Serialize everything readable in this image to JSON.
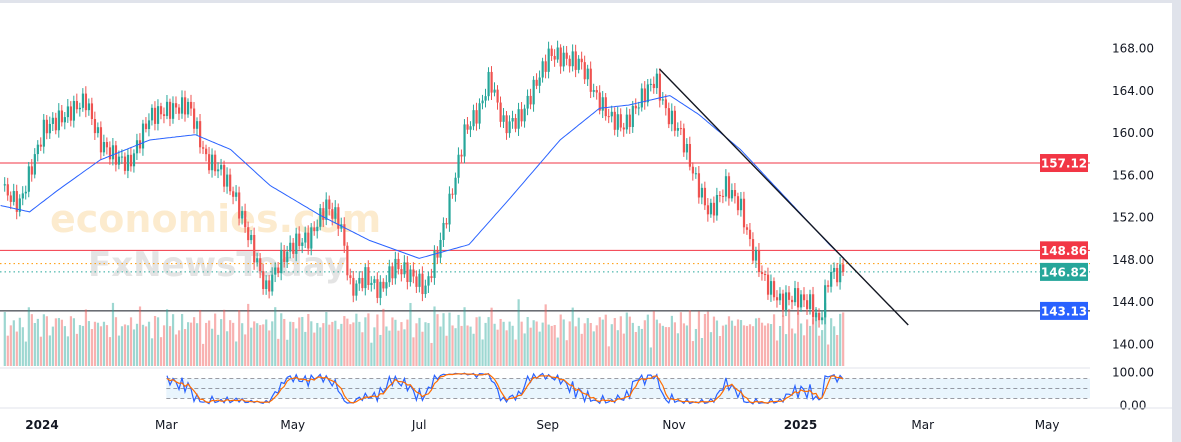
{
  "chart_data": {
    "type": "candlestick",
    "title": "",
    "price_axis": {
      "ylim": [
        140,
        168
      ],
      "ticks": [
        "168.00",
        "164.00",
        "160.00",
        "156.00",
        "152.00",
        "148.00",
        "144.00",
        "140.00"
      ]
    },
    "time_axis": {
      "labels": [
        {
          "text": "2024",
          "day": 0,
          "bold": true
        },
        {
          "text": "Mar",
          "day": 60
        },
        {
          "text": "May",
          "day": 121
        },
        {
          "text": "Jul",
          "day": 182
        },
        {
          "text": "Sep",
          "day": 244
        },
        {
          "text": "Nov",
          "day": 305
        },
        {
          "text": "2025",
          "day": 366,
          "bold": true
        },
        {
          "text": "Mar",
          "day": 425
        },
        {
          "text": "May",
          "day": 485
        }
      ],
      "xlim_days": [
        -20,
        518
      ]
    },
    "close_keypoints": {
      "day": [
        -18,
        -11,
        1,
        11,
        21,
        28,
        35,
        42,
        52,
        64,
        71,
        79,
        86,
        93,
        100,
        108,
        115,
        122,
        129,
        137,
        144,
        149,
        156,
        163,
        170,
        178,
        185,
        192,
        199,
        204,
        211,
        216,
        223,
        231,
        238,
        245,
        252,
        260,
        267,
        274,
        281,
        289,
        296,
        301,
        308,
        315,
        322,
        330,
        337,
        342,
        349,
        356,
        363,
        371,
        375,
        380,
        387
      ],
      "price": [
        155,
        153.6,
        160.7,
        161.7,
        163,
        158.8,
        157.4,
        156.5,
        161,
        161.7,
        162,
        157,
        156,
        153.6,
        149.8,
        145,
        148,
        149.8,
        150.3,
        153.6,
        152,
        145.6,
        147,
        145.6,
        148,
        147,
        145.6,
        149.8,
        155.5,
        160.2,
        162,
        165,
        160.2,
        161,
        164,
        166.9,
        166.4,
        166,
        163,
        161,
        160.2,
        163,
        165,
        162,
        160.2,
        156,
        152.7,
        155.5,
        153.6,
        149.8,
        146.5,
        144.6,
        145,
        144.2,
        142.3,
        147,
        146.82
      ]
    },
    "moving_average": {
      "day": [
        -20,
        -6,
        8,
        28,
        52,
        74,
        91,
        110,
        134,
        158,
        182,
        206,
        225,
        250,
        269,
        283,
        303,
        317,
        337,
        360,
        380,
        387
      ],
      "price": [
        153.1,
        152.5,
        154.6,
        157.4,
        159.3,
        159.8,
        158.4,
        155,
        152.2,
        149.8,
        148.1,
        149.4,
        153.6,
        159.3,
        162.3,
        162.6,
        163.5,
        161.7,
        158.4,
        153.6,
        149.4,
        148.1
      ]
    },
    "trendline": {
      "from": {
        "day": 298,
        "price": 166
      },
      "to": {
        "day": 418,
        "price": 141.8
      }
    },
    "levels": [
      {
        "price": 157.12,
        "label": "157.12",
        "line_color": "#f23645",
        "tag_color": "#f23645",
        "style": "solid"
      },
      {
        "price": 148.86,
        "label": "148.86",
        "line_color": "#f23645",
        "tag_color": "#f23645",
        "style": "solid"
      },
      {
        "price": 147.6,
        "label": "",
        "line_color": "#ff9800",
        "tag_color": "",
        "style": "dotted"
      },
      {
        "price": 146.82,
        "label": "146.82",
        "line_color": "#26a69a",
        "tag_color": "#26a69a",
        "style": "dotted"
      },
      {
        "price": 143.13,
        "label": "143.13",
        "line_color": "#131722",
        "tag_color": "#2962ff",
        "style": "solid"
      }
    ],
    "stochastic": {
      "ylim": [
        0,
        100
      ],
      "ticks": [
        "100.00",
        "0.00"
      ],
      "bands": [
        80,
        50,
        20
      ],
      "k_color": "#2962ff",
      "d_color": "#ff6d00",
      "start_day": 60
    },
    "colors": {
      "up": "#26a69a",
      "down": "#ef5350",
      "ma": "#2962ff"
    }
  },
  "watermark": {
    "line1": "economies.com",
    "line2": "FxNewsToday"
  }
}
